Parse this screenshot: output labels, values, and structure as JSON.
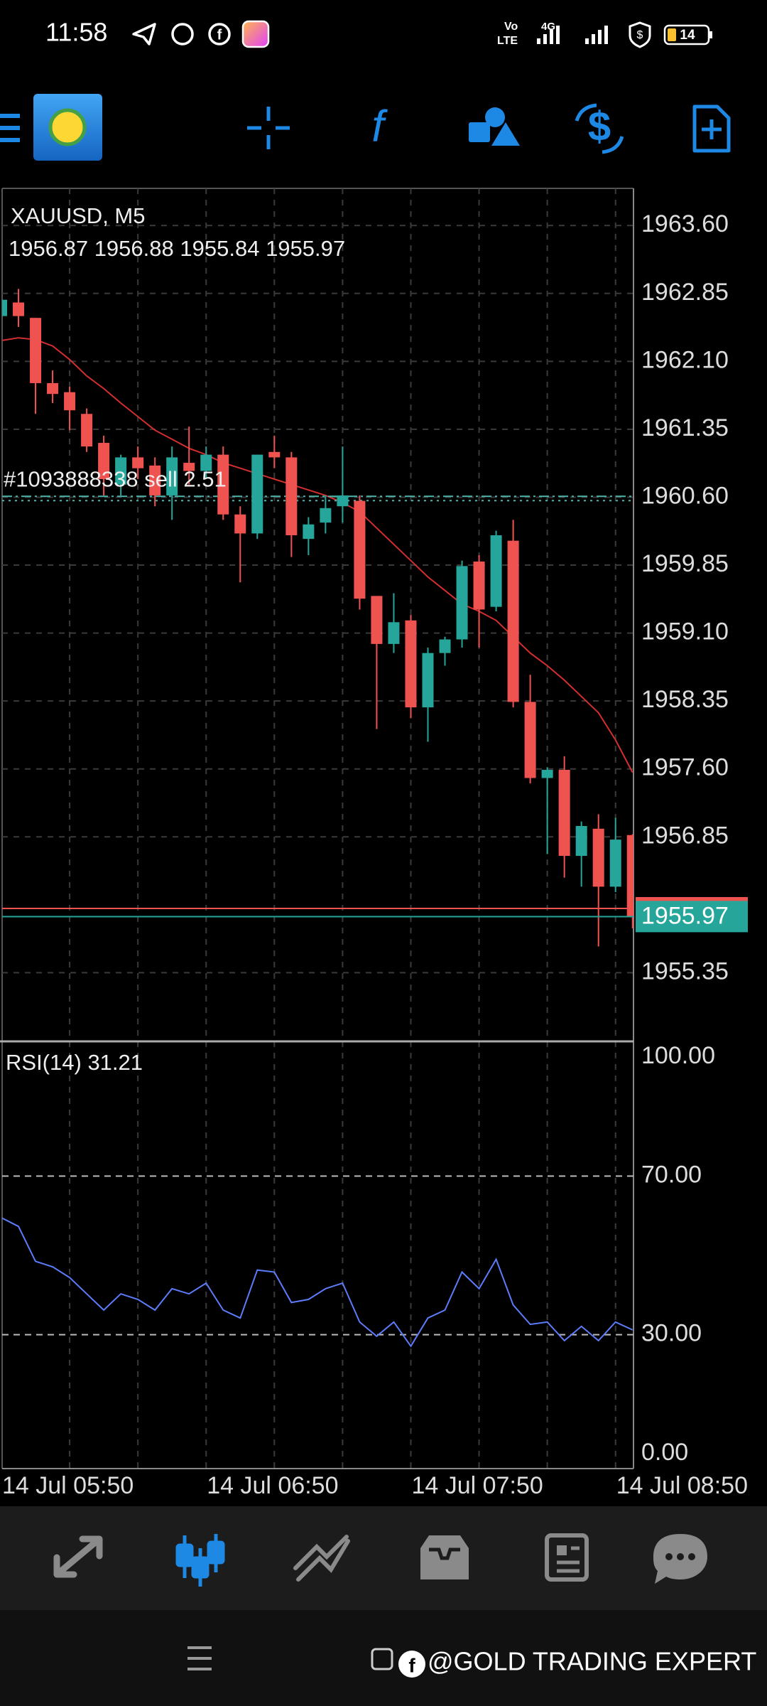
{
  "status_bar": {
    "time": "11:58",
    "volte": [
      "Vo",
      "LTE"
    ],
    "network": "4G",
    "battery": "14"
  },
  "watermark": "@GOLD TRADING EXPERT",
  "chart_data": [
    {
      "type": "candlestick",
      "title": "XAUUSD, M5",
      "categories": [
        "14 Jul 05:50",
        null,
        null,
        null,
        null,
        null,
        null,
        null,
        null,
        null,
        null,
        null,
        "14 Jul 06:50",
        null,
        null,
        null,
        null,
        null,
        null,
        null,
        null,
        null,
        null,
        null,
        "14 Jul 07:50",
        null,
        null,
        null,
        null,
        null,
        null,
        null,
        null,
        null,
        null,
        null,
        "14 Jul 08:50",
        null
      ],
      "open": [
        1962.6,
        1962.75,
        1962.58,
        1961.86,
        1961.76,
        1961.52,
        1961.2,
        1960.74,
        1961.04,
        1960.95,
        1960.62,
        1960.98,
        1960.89,
        1961.07,
        1960.41,
        1960.2,
        1961.1,
        1961.04,
        1960.14,
        1960.32,
        1960.5,
        1960.56,
        1959.51,
        1958.98,
        1959.24,
        1958.28,
        1958.88,
        1959.03,
        1959.89,
        1959.39,
        1960.12,
        1958.34,
        1957.5,
        1957.59,
        1956.64,
        1956.94,
        1956.3,
        1956.87
      ],
      "high": [
        1962.8,
        1962.9,
        1962.58,
        1962.0,
        1961.82,
        1961.58,
        1961.28,
        1961.07,
        1961.16,
        1961.04,
        1961.16,
        1961.38,
        1961.16,
        1961.16,
        1960.5,
        1961.07,
        1961.28,
        1961.1,
        1960.38,
        1960.62,
        1961.16,
        1960.62,
        1959.51,
        1959.54,
        1959.3,
        1958.94,
        1959.06,
        1959.9,
        1959.96,
        1960.23,
        1960.35,
        1958.64,
        1957.62,
        1957.74,
        1957.02,
        1957.1,
        1957.06,
        1956.88
      ],
      "low": [
        1962.55,
        1962.48,
        1961.52,
        1961.64,
        1961.34,
        1961.1,
        1960.62,
        1960.62,
        1960.8,
        1960.5,
        1960.35,
        1960.74,
        1960.8,
        1960.35,
        1959.66,
        1960.14,
        1960.92,
        1959.94,
        1959.96,
        1960.2,
        1960.32,
        1959.36,
        1958.04,
        1958.88,
        1958.16,
        1957.9,
        1958.74,
        1958.94,
        1958.94,
        1959.34,
        1958.28,
        1957.44,
        1956.66,
        1956.4,
        1956.3,
        1955.64,
        1956.24,
        1955.84
      ],
      "close": [
        1962.78,
        1962.6,
        1961.86,
        1961.74,
        1961.56,
        1961.16,
        1960.8,
        1961.04,
        1960.92,
        1960.62,
        1961.04,
        1960.89,
        1961.07,
        1960.41,
        1960.2,
        1961.07,
        1961.04,
        1960.18,
        1960.3,
        1960.48,
        1960.62,
        1959.48,
        1958.98,
        1959.22,
        1958.28,
        1958.88,
        1959.03,
        1959.84,
        1959.36,
        1960.18,
        1958.34,
        1957.5,
        1957.59,
        1956.64,
        1956.97,
        1956.3,
        1956.82,
        1955.97
      ],
      "up_color": "#26a69a",
      "down_color": "#ef5350",
      "ma": {
        "color": "#d32f2f",
        "values": [
          1962.33,
          1962.36,
          1962.34,
          1962.27,
          1962.12,
          1961.94,
          1961.8,
          1961.64,
          1961.49,
          1961.34,
          1961.24,
          1961.14,
          1961.07,
          1960.98,
          1960.92,
          1960.86,
          1960.8,
          1960.74,
          1960.68,
          1960.62,
          1960.54,
          1960.44,
          1960.26,
          1960.08,
          1959.9,
          1959.72,
          1959.57,
          1959.42,
          1959.34,
          1959.24,
          1959.06,
          1958.88,
          1958.74,
          1958.58,
          1958.4,
          1958.22,
          1957.92,
          1957.56
        ]
      },
      "order": {
        "label": "#1093888338 sell 2.51",
        "price": 1960.61,
        "color": "#4db6ac"
      },
      "ask": 1956.06,
      "ask_color": "#ef5350",
      "bid_color": "#26a69a",
      "ylim": [
        1954.6,
        1964.01
      ],
      "yticks": [
        {
          "value": 1963.6,
          "label": "1963.60"
        },
        1962.85,
        {
          "value": 1962.1,
          "label": "1962.10"
        },
        1961.35,
        {
          "value": 1960.6,
          "label": "1960.60"
        },
        1959.85,
        {
          "value": 1959.1,
          "label": "1959.10"
        },
        1958.35,
        {
          "value": 1957.6,
          "label": "1957.60"
        },
        1956.85,
        1955.35
      ],
      "grid": true
    },
    {
      "type": "line",
      "title": "RSI(14)",
      "values": [
        59.5,
        57.3,
        48.5,
        47.1,
        44.4,
        40.3,
        36.2,
        40.3,
        38.9,
        36.2,
        41.6,
        40.3,
        43.0,
        36.2,
        34.2,
        46.3,
        45.8,
        38.1,
        38.9,
        41.6,
        43.0,
        33.2,
        29.6,
        33.2,
        27.1,
        34.2,
        36.2,
        45.8,
        41.6,
        49.0,
        37.5,
        32.6,
        33.2,
        28.5,
        32.1,
        28.5,
        33.2,
        31.21
      ],
      "color": "#5c7cfa",
      "ylim": [
        -3.6,
        103.8
      ],
      "yticks": [
        {
          "value": 100,
          "label": "100.00"
        },
        {
          "value": 70,
          "label": "70.00"
        },
        {
          "value": 30,
          "label": "30.00"
        },
        {
          "value": 0,
          "label": "0.00"
        }
      ]
    }
  ]
}
